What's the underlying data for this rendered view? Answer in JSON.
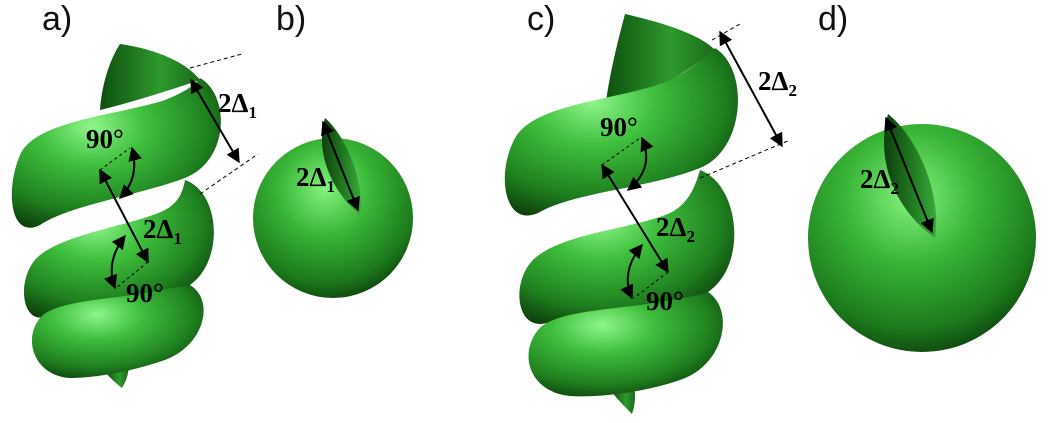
{
  "panels": [
    {
      "label": "a)"
    },
    {
      "label": "b)"
    },
    {
      "label": "c)"
    },
    {
      "label": "d)"
    }
  ],
  "annotations": {
    "a_pitch": {
      "main": "2Δ",
      "sub": "1"
    },
    "a_width": {
      "main": "2Δ",
      "sub": "1"
    },
    "a_angle_top": "90°",
    "a_angle_bottom": "90°",
    "b_width": {
      "main": "2Δ",
      "sub": "1"
    },
    "c_pitch": {
      "main": "2Δ",
      "sub": "2"
    },
    "c_width": {
      "main": "2Δ",
      "sub": "2"
    },
    "c_angle_top": "90°",
    "c_angle_bottom": "90°",
    "d_width": {
      "main": "2Δ",
      "sub": "2"
    }
  },
  "colors": {
    "surface": "#2fa82f",
    "surface_light": "#7ff07a",
    "surface_dark": "#0b3f0b",
    "ink": "#000000"
  }
}
